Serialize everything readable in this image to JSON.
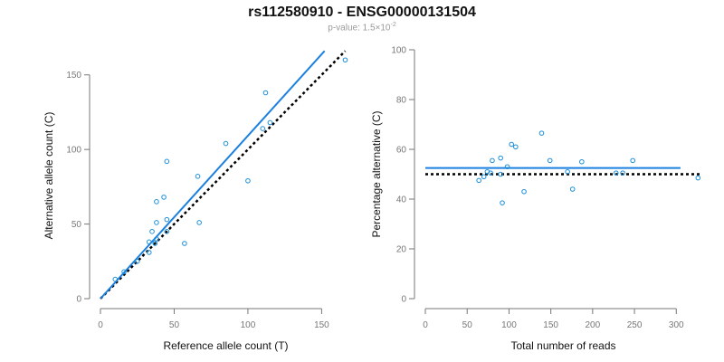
{
  "title": "rs112580910 - ENSG00000131504",
  "subtitle": {
    "prefix": "p-value: 1.5×10",
    "exponent": "-2"
  },
  "colors": {
    "points": "#1b8fd9",
    "fit_line": "#1b80e0",
    "reference_line": "#000000",
    "axis": "#777777"
  },
  "chart_data": [
    {
      "type": "scatter",
      "xlabel": "Reference allele count (T)",
      "ylabel": "Alternative allele count (C)",
      "xlim": [
        0,
        170
      ],
      "ylim": [
        0,
        165
      ],
      "xticks": [
        0,
        50,
        100,
        150
      ],
      "yticks": [
        0,
        50,
        100,
        150
      ],
      "grid": false,
      "points": [
        [
          166,
          160
        ],
        [
          112,
          138
        ],
        [
          45,
          92
        ],
        [
          85,
          104
        ],
        [
          66,
          82
        ],
        [
          100,
          79
        ],
        [
          115,
          118
        ],
        [
          110,
          114
        ],
        [
          43,
          68
        ],
        [
          38,
          65
        ],
        [
          45,
          53
        ],
        [
          67,
          51
        ],
        [
          38,
          51
        ],
        [
          45,
          45
        ],
        [
          35,
          45
        ],
        [
          57,
          37
        ],
        [
          38,
          40
        ],
        [
          33,
          38
        ],
        [
          37,
          37
        ],
        [
          33,
          31
        ],
        [
          25,
          25
        ],
        [
          16,
          18
        ],
        [
          10,
          13
        ]
      ],
      "fit_line": {
        "x": [
          0,
          152
        ],
        "y": [
          0,
          166
        ]
      },
      "reference_line": {
        "x": [
          0,
          166
        ],
        "y": [
          0,
          166
        ]
      }
    },
    {
      "type": "scatter",
      "xlabel": "Total number of reads",
      "ylabel": "Percentage alternative (C)",
      "xlim": [
        0,
        330
      ],
      "ylim": [
        0,
        100
      ],
      "xticks": [
        0,
        50,
        100,
        150,
        200,
        250,
        300
      ],
      "yticks": [
        0,
        20,
        40,
        60,
        80,
        100
      ],
      "grid": false,
      "points": [
        [
          139,
          66.5
        ],
        [
          103,
          62
        ],
        [
          108,
          61
        ],
        [
          90,
          56.5
        ],
        [
          80,
          55.5
        ],
        [
          149,
          55.5
        ],
        [
          187,
          55
        ],
        [
          248,
          55.5
        ],
        [
          98,
          53
        ],
        [
          74,
          51
        ],
        [
          78,
          50.5
        ],
        [
          90,
          50
        ],
        [
          170,
          51
        ],
        [
          228,
          50.5
        ],
        [
          236,
          50.5
        ],
        [
          326,
          48.5
        ],
        [
          64,
          47.5
        ],
        [
          70,
          49
        ],
        [
          118,
          43
        ],
        [
          176,
          44
        ],
        [
          92,
          38.5
        ]
      ],
      "fit_line": {
        "x": [
          0,
          305
        ],
        "y": [
          52.5,
          52.5
        ]
      },
      "reference_line": {
        "x": [
          0,
          330
        ],
        "y": [
          50,
          50
        ]
      }
    }
  ]
}
